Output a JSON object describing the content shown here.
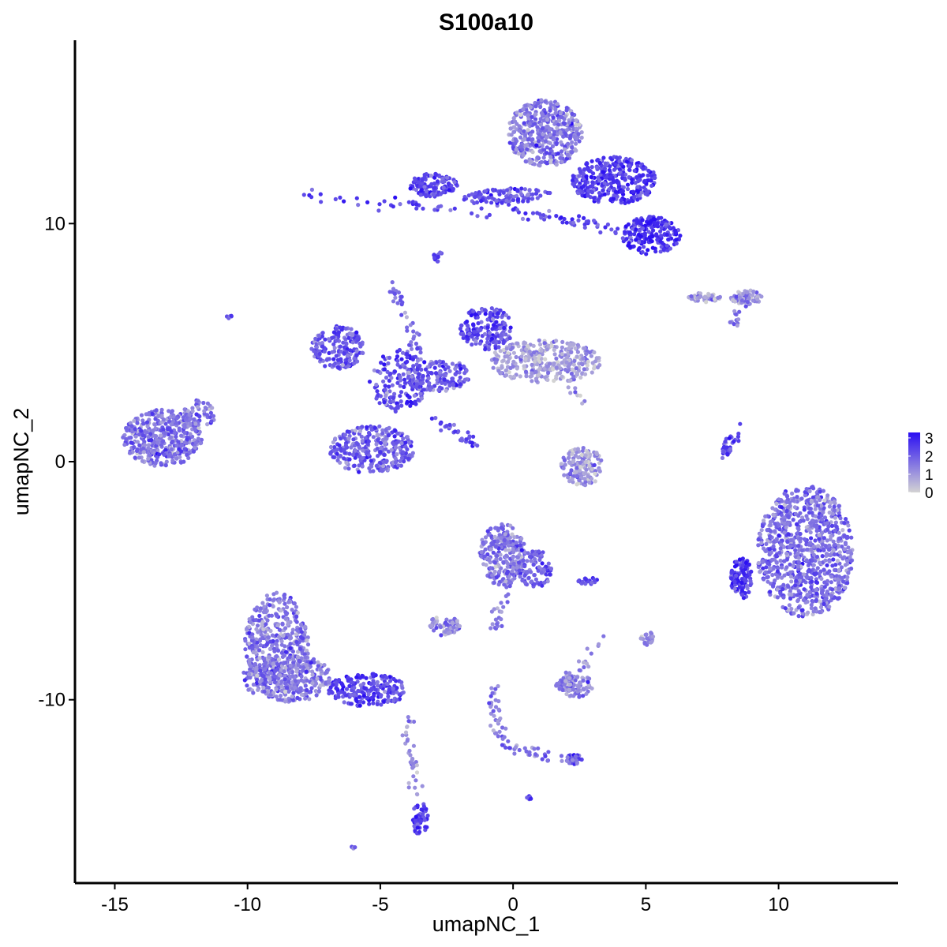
{
  "chart_data": {
    "type": "scatter",
    "title": "S100a10",
    "xlabel": "umapNC_1",
    "ylabel": "umapNC_2",
    "xlim": [
      -16.5,
      14.5
    ],
    "ylim": [
      -17.7,
      17.7
    ],
    "xticks": [
      -15,
      -10,
      -5,
      0,
      5,
      10
    ],
    "yticks": [
      -10,
      0,
      10
    ],
    "xtick_labels": [
      "-15",
      "-10",
      "-5",
      "0",
      "5",
      "10"
    ],
    "ytick_labels": [
      "-10",
      "0",
      "10"
    ],
    "grid": false,
    "legend": {
      "position": "right",
      "type": "colorbar",
      "labels": [
        "3",
        "2",
        "1",
        "0"
      ],
      "values": [
        3,
        2,
        1,
        0
      ],
      "range": [
        0,
        3.3
      ]
    },
    "color_scale": {
      "low": "#d3d3d3",
      "high": "#2b0ff2"
    },
    "clusters": [
      {
        "cx": -13.2,
        "cy": 1.0,
        "rx": 1.5,
        "ry": 1.2,
        "n": 420,
        "expr": 1.6
      },
      {
        "cx": -11.8,
        "cy": 2.0,
        "rx": 0.6,
        "ry": 0.6,
        "n": 60,
        "expr": 1.6
      },
      {
        "cx": -6.6,
        "cy": 4.8,
        "rx": 1.0,
        "ry": 0.9,
        "n": 180,
        "expr": 2.1
      },
      {
        "cx": -5.3,
        "cy": 0.5,
        "rx": 1.6,
        "ry": 1.0,
        "n": 300,
        "expr": 1.9
      },
      {
        "cx": -4.3,
        "cy": 3.4,
        "rx": 1.1,
        "ry": 1.3,
        "n": 160,
        "expr": 2.2
      },
      {
        "cx": -2.8,
        "cy": 3.6,
        "rx": 1.2,
        "ry": 0.7,
        "n": 150,
        "expr": 2.0
      },
      {
        "cx": -1.0,
        "cy": 5.6,
        "rx": 1.0,
        "ry": 0.9,
        "n": 180,
        "expr": 2.3
      },
      {
        "cx": 1.2,
        "cy": 4.2,
        "rx": 2.1,
        "ry": 0.9,
        "n": 320,
        "expr": 0.9
      },
      {
        "cx": -3.0,
        "cy": 11.6,
        "rx": 0.9,
        "ry": 0.5,
        "n": 120,
        "expr": 2.5
      },
      {
        "cx": 1.2,
        "cy": 13.8,
        "rx": 1.4,
        "ry": 1.4,
        "n": 420,
        "expr": 1.5
      },
      {
        "cx": 3.8,
        "cy": 11.8,
        "rx": 1.6,
        "ry": 1.0,
        "n": 340,
        "expr": 2.6
      },
      {
        "cx": 5.2,
        "cy": 9.5,
        "rx": 1.1,
        "ry": 0.8,
        "n": 200,
        "expr": 2.7
      },
      {
        "cx": 0.0,
        "cy": 11.2,
        "rx": 1.5,
        "ry": 0.3,
        "n": 90,
        "expr": 2.0
      },
      {
        "cx": 8.8,
        "cy": 6.9,
        "rx": 0.6,
        "ry": 0.3,
        "n": 60,
        "expr": 1.2
      },
      {
        "cx": 7.2,
        "cy": 6.9,
        "rx": 0.6,
        "ry": 0.2,
        "n": 40,
        "expr": 1.0
      },
      {
        "cx": 11.0,
        "cy": -3.8,
        "rx": 1.8,
        "ry": 2.8,
        "n": 900,
        "expr": 1.7
      },
      {
        "cx": 8.6,
        "cy": -4.9,
        "rx": 0.4,
        "ry": 0.9,
        "n": 120,
        "expr": 2.6
      },
      {
        "cx": 2.6,
        "cy": -0.2,
        "rx": 0.8,
        "ry": 0.8,
        "n": 140,
        "expr": 0.9
      },
      {
        "cx": -0.4,
        "cy": -3.9,
        "rx": 0.9,
        "ry": 1.3,
        "n": 260,
        "expr": 1.6
      },
      {
        "cx": 0.8,
        "cy": -4.5,
        "rx": 0.7,
        "ry": 0.8,
        "n": 100,
        "expr": 1.9
      },
      {
        "cx": -8.9,
        "cy": -7.7,
        "rx": 1.2,
        "ry": 2.2,
        "n": 420,
        "expr": 1.5
      },
      {
        "cx": -8.5,
        "cy": -9.1,
        "rx": 1.7,
        "ry": 1.0,
        "n": 300,
        "expr": 1.5
      },
      {
        "cx": -5.5,
        "cy": -9.6,
        "rx": 1.5,
        "ry": 0.7,
        "n": 200,
        "expr": 2.5
      },
      {
        "cx": -3.5,
        "cy": -15.0,
        "rx": 0.3,
        "ry": 0.7,
        "n": 60,
        "expr": 2.4
      },
      {
        "cx": 2.3,
        "cy": -9.4,
        "rx": 0.7,
        "ry": 0.5,
        "n": 100,
        "expr": 1.3
      },
      {
        "cx": -2.6,
        "cy": -6.9,
        "rx": 0.6,
        "ry": 0.4,
        "n": 70,
        "expr": 1.2
      },
      {
        "cx": 2.3,
        "cy": -12.5,
        "rx": 0.3,
        "ry": 0.2,
        "n": 40,
        "expr": 2.3
      },
      {
        "cx": 5.0,
        "cy": -7.4,
        "rx": 0.3,
        "ry": 0.3,
        "n": 25,
        "expr": 1.2
      },
      {
        "cx": 2.8,
        "cy": -5.0,
        "rx": 0.4,
        "ry": 0.15,
        "n": 20,
        "expr": 2.2
      },
      {
        "cx": -2.8,
        "cy": 8.6,
        "rx": 0.2,
        "ry": 0.2,
        "n": 15,
        "expr": 2.5
      },
      {
        "cx": 0.6,
        "cy": -14.1,
        "rx": 0.1,
        "ry": 0.1,
        "n": 6,
        "expr": 2.5
      },
      {
        "cx": -6.0,
        "cy": -16.2,
        "rx": 0.1,
        "ry": 0.1,
        "n": 6,
        "expr": 2.0
      },
      {
        "cx": -10.7,
        "cy": 6.1,
        "rx": 0.1,
        "ry": 0.1,
        "n": 5,
        "expr": 1.8
      }
    ],
    "trails": [
      {
        "from": [
          -8.0,
          11.2
        ],
        "to": [
          3.5,
          10.0
        ],
        "n": 60,
        "expr": 2.4
      },
      {
        "from": [
          -1.8,
          11.1
        ],
        "to": [
          4.0,
          9.7
        ],
        "n": 50,
        "expr": 2.3
      },
      {
        "from": [
          -4.5,
          7.4
        ],
        "to": [
          -3.5,
          4.3
        ],
        "n": 40,
        "expr": 1.8
      },
      {
        "from": [
          -3.0,
          1.7
        ],
        "to": [
          -1.3,
          0.7
        ],
        "n": 30,
        "expr": 2.0
      },
      {
        "from": [
          7.8,
          0.3
        ],
        "to": [
          8.6,
          1.3
        ],
        "n": 35,
        "expr": 2.2
      },
      {
        "from": [
          -0.7,
          -7.0
        ],
        "to": [
          -0.2,
          -5.0
        ],
        "n": 25,
        "expr": 1.6
      },
      {
        "from": [
          -0.8,
          -9.4
        ],
        "to": [
          -0.4,
          -11.9
        ],
        "n": 35,
        "expr": 1.5
      },
      {
        "from": [
          -0.4,
          -11.9
        ],
        "to": [
          2.3,
          -12.6
        ],
        "n": 35,
        "expr": 1.6
      },
      {
        "from": [
          -4.0,
          -10.8
        ],
        "to": [
          -3.7,
          -14.3
        ],
        "n": 35,
        "expr": 1.3
      },
      {
        "from": [
          2.0,
          -9.3
        ],
        "to": [
          3.5,
          -7.2
        ],
        "n": 20,
        "expr": 1.2
      },
      {
        "from": [
          9.0,
          7.2
        ],
        "to": [
          8.3,
          5.8
        ],
        "n": 15,
        "expr": 1.3
      },
      {
        "from": [
          1.0,
          4.5
        ],
        "to": [
          2.8,
          2.3
        ],
        "n": 12,
        "expr": 0.9
      }
    ]
  }
}
